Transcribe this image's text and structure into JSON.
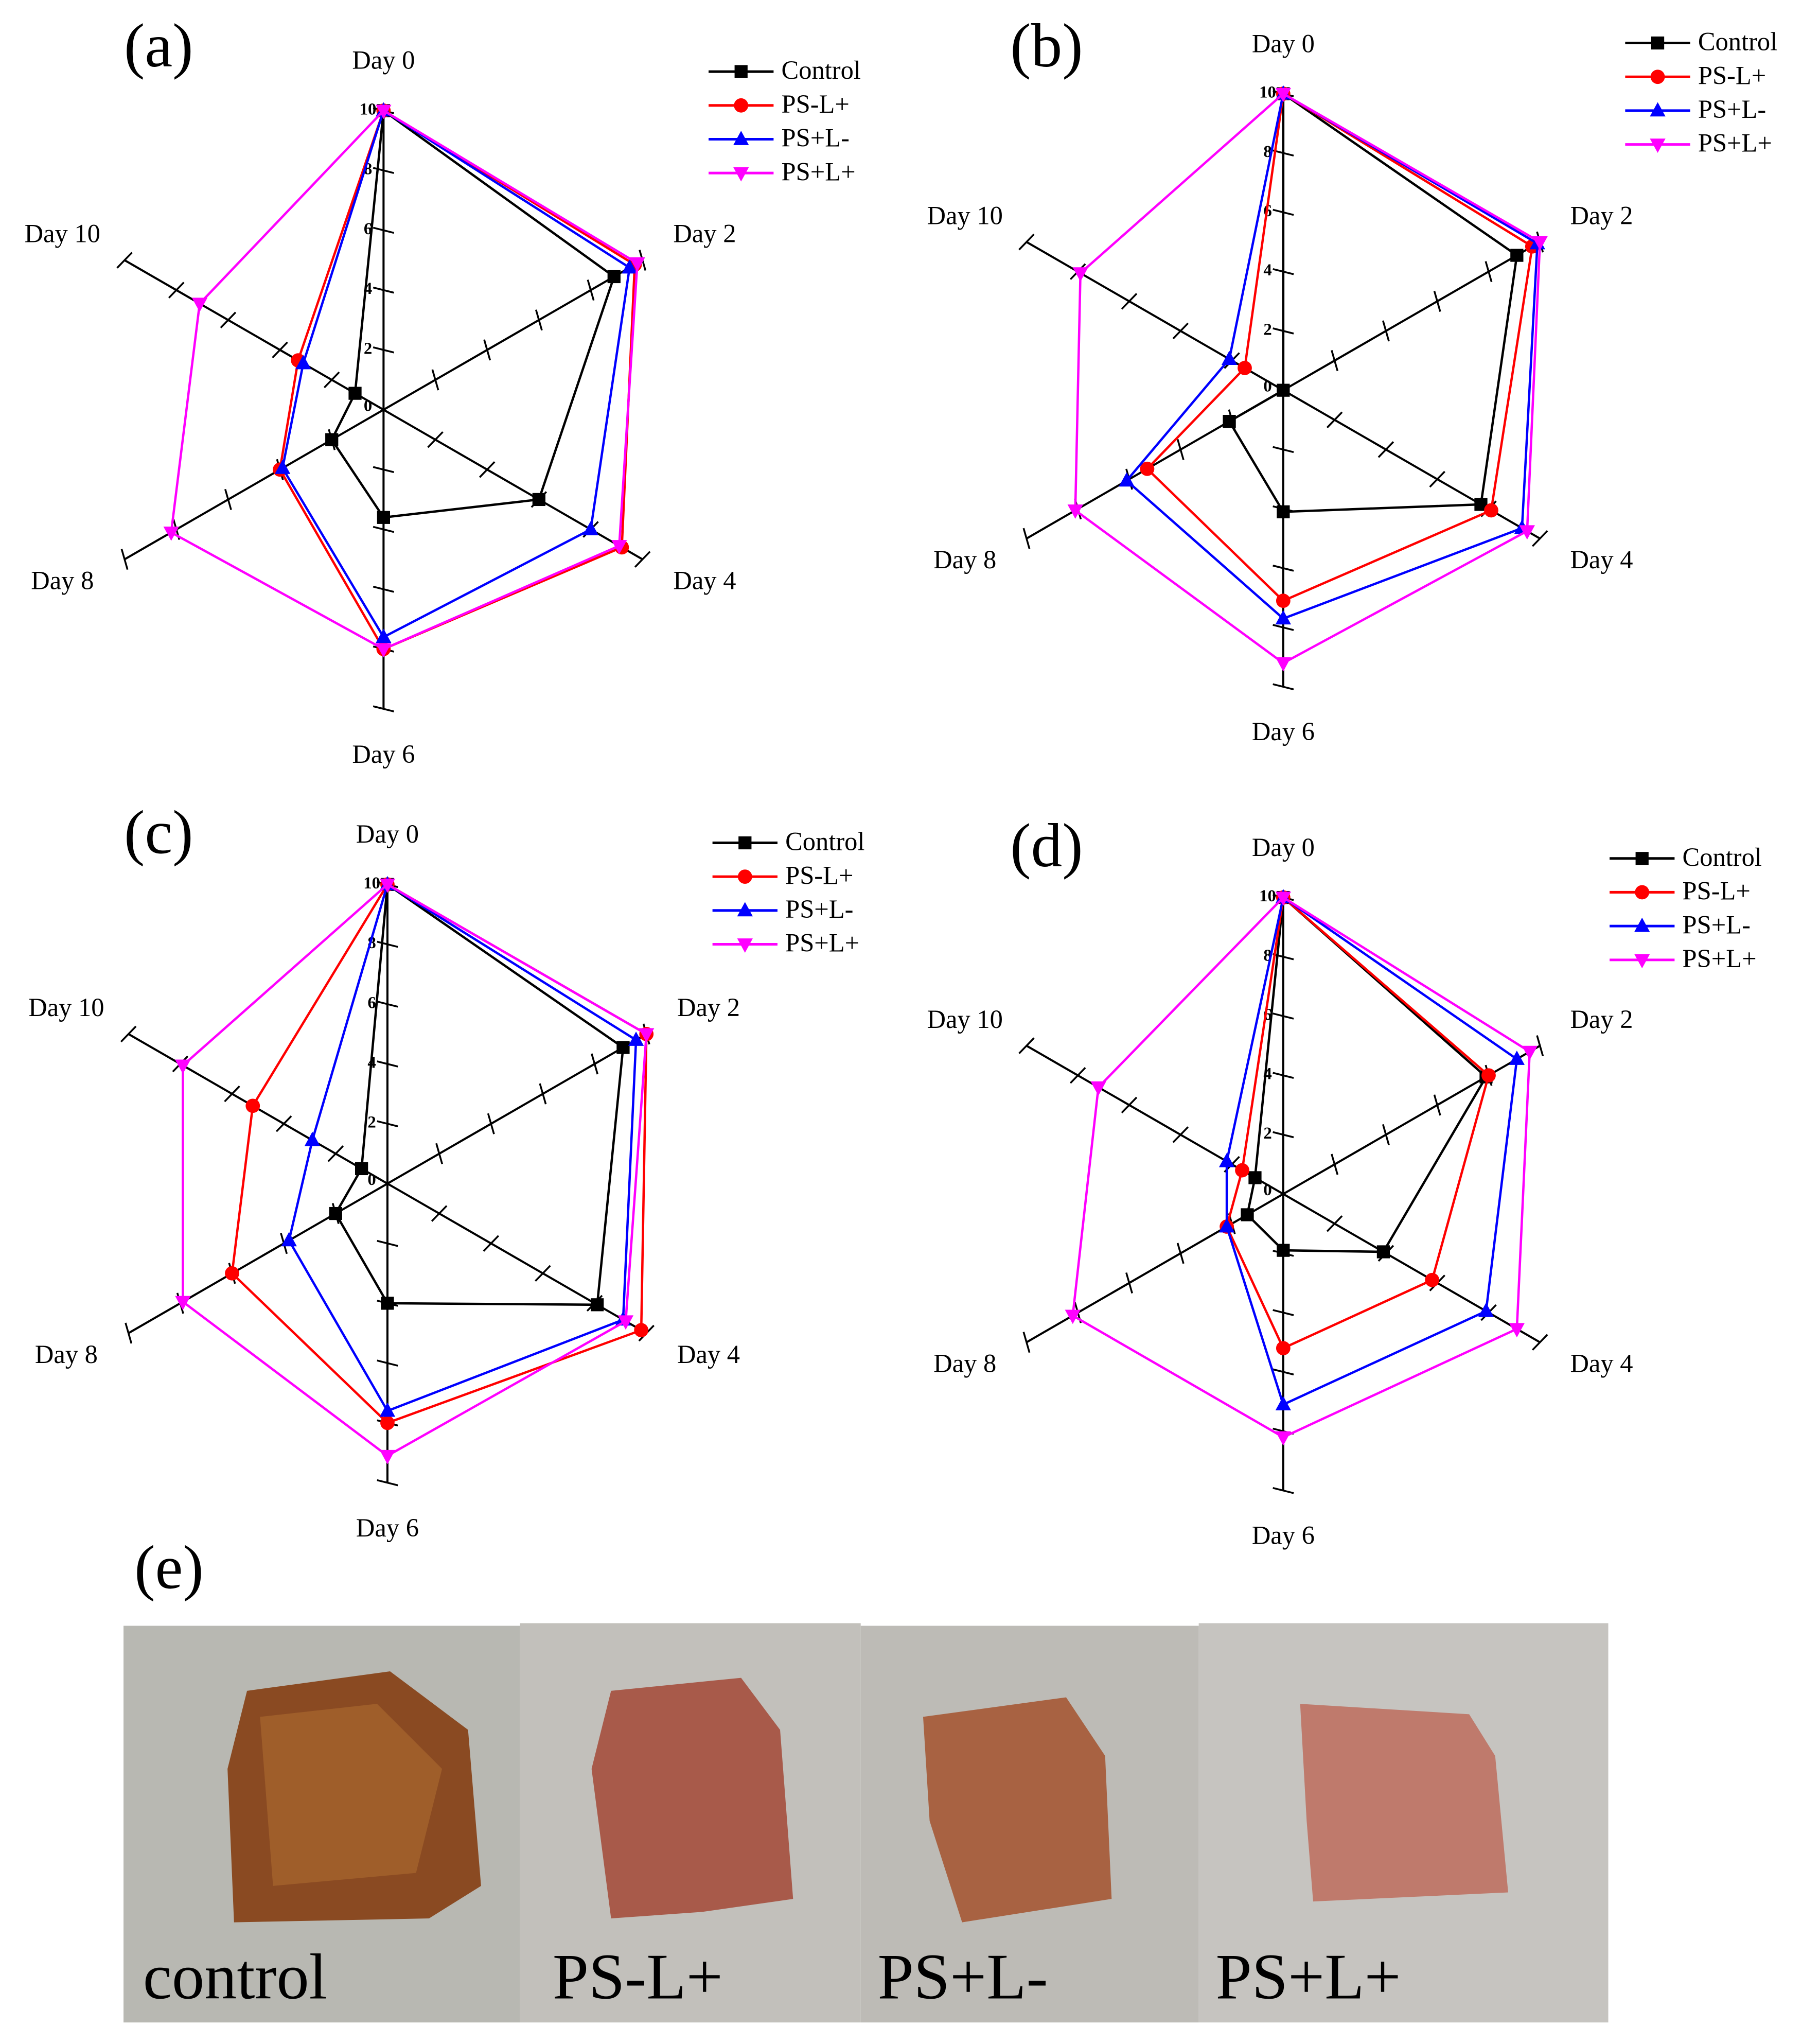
{
  "chart_data": [
    {
      "type": "radar",
      "title": "(a)",
      "categories": [
        "Day 0",
        "Day 2",
        "Day 4",
        "Day 6",
        "Day 8",
        "Day 10"
      ],
      "rlim": [
        0,
        10
      ],
      "rticks": [
        0,
        2,
        4,
        6,
        8,
        10
      ],
      "legend": "upper right",
      "series": [
        {
          "name": "Control",
          "color": "#000000",
          "marker": "square",
          "values": [
            10,
            8.9,
            6.0,
            3.6,
            2.0,
            1.1
          ]
        },
        {
          "name": "PS-L+",
          "color": "#ff0000",
          "marker": "circle",
          "values": [
            10,
            9.7,
            9.2,
            8.0,
            4.0,
            3.3
          ]
        },
        {
          "name": "PS+L-",
          "color": "#0000ff",
          "marker": "triangle-up",
          "values": [
            10,
            9.5,
            8.0,
            7.6,
            3.9,
            3.1
          ]
        },
        {
          "name": "PS+L+",
          "color": "#ff00ff",
          "marker": "triangle-down",
          "values": [
            10,
            9.8,
            9.1,
            8.0,
            8.2,
            7.1
          ]
        }
      ]
    },
    {
      "type": "radar",
      "title": "(b)",
      "categories": [
        "Day 0",
        "Day 2",
        "Day 4",
        "Day 6",
        "Day 8",
        "Day 10"
      ],
      "rlim": [
        0,
        10
      ],
      "rticks": [
        0,
        2,
        4,
        6,
        8,
        10
      ],
      "legend": "upper right",
      "series": [
        {
          "name": "Control",
          "color": "#000000",
          "marker": "square",
          "values": [
            10,
            9.1,
            7.7,
            4.1,
            2.1,
            0
          ]
        },
        {
          "name": "PS-L+",
          "color": "#ff0000",
          "marker": "circle",
          "values": [
            10,
            9.7,
            8.1,
            7.1,
            5.3,
            1.5
          ]
        },
        {
          "name": "PS+L-",
          "color": "#0000ff",
          "marker": "triangle-up",
          "values": [
            10,
            9.9,
            9.3,
            7.7,
            6.1,
            2.1
          ]
        },
        {
          "name": "PS+L+",
          "color": "#ff00ff",
          "marker": "triangle-down",
          "values": [
            10,
            10,
            9.5,
            9.2,
            8.1,
            7.9
          ]
        }
      ]
    },
    {
      "type": "radar",
      "title": "(c)",
      "categories": [
        "Day 0",
        "Day 2",
        "Day 4",
        "Day 6",
        "Day 8",
        "Day 10"
      ],
      "rlim": [
        0,
        10
      ],
      "rticks": [
        0,
        2,
        4,
        6,
        8,
        10
      ],
      "legend": "upper right",
      "series": [
        {
          "name": "Control",
          "color": "#000000",
          "marker": "square",
          "values": [
            10,
            9.1,
            8.1,
            4.0,
            2.0,
            1.0
          ]
        },
        {
          "name": "PS-L+",
          "color": "#ff0000",
          "marker": "circle",
          "values": [
            10,
            10,
            9.8,
            8.0,
            6.0,
            5.2
          ]
        },
        {
          "name": "PS+L-",
          "color": "#0000ff",
          "marker": "triangle-up",
          "values": [
            10,
            9.6,
            9.1,
            7.6,
            3.8,
            2.9
          ]
        },
        {
          "name": "PS+L+",
          "color": "#ff00ff",
          "marker": "triangle-down",
          "values": [
            10,
            10,
            9.2,
            9.1,
            7.9,
            7.9
          ]
        }
      ]
    },
    {
      "type": "radar",
      "title": "(d)",
      "categories": [
        "Day 0",
        "Day 2",
        "Day 4",
        "Day 6",
        "Day 8",
        "Day 10"
      ],
      "rlim": [
        0,
        10
      ],
      "rticks": [
        0,
        2,
        4,
        6,
        8,
        10
      ],
      "legend": "upper right",
      "series": [
        {
          "name": "Control",
          "color": "#000000",
          "marker": "square",
          "values": [
            10,
            7.9,
            3.9,
            1.9,
            1.4,
            1.1
          ]
        },
        {
          "name": "PS-L+",
          "color": "#ff0000",
          "marker": "circle",
          "values": [
            10,
            8.0,
            5.8,
            5.2,
            2.2,
            1.6
          ]
        },
        {
          "name": "PS+L-",
          "color": "#0000ff",
          "marker": "triangle-up",
          "values": [
            10,
            9.1,
            7.9,
            7.1,
            2.2,
            2.2
          ]
        },
        {
          "name": "PS+L+",
          "color": "#ff00ff",
          "marker": "triangle-down",
          "values": [
            10,
            9.6,
            9.1,
            8.2,
            8.2,
            7.2
          ]
        }
      ]
    }
  ],
  "photo_panel": {
    "label": "(e)",
    "captions": [
      "control",
      "PS-L+",
      "PS+L-",
      "PS+L+"
    ]
  }
}
